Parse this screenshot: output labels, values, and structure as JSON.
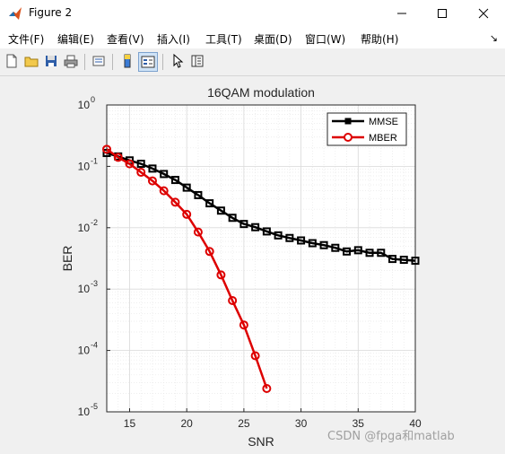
{
  "window": {
    "title": "Figure 2"
  },
  "menu": [
    "文件(F)",
    "编辑(E)",
    "查看(V)",
    "插入(I)",
    "工具(T)",
    "桌面(D)",
    "窗口(W)",
    "帮助(H)"
  ],
  "toolbar": {
    "icons": [
      "new-figure-icon",
      "open-file-icon",
      "save-icon",
      "print-icon",
      "link-axes-icon",
      "colorbar-icon",
      "legend-icon",
      "pointer-icon",
      "property-inspector-icon"
    ]
  },
  "watermark": "CSDN @fpga和matlab",
  "chart_data": {
    "type": "line",
    "title": "16QAM modulation",
    "xlabel": "SNR",
    "ylabel": "BER",
    "xlim": [
      13,
      40
    ],
    "ylim": [
      1e-05,
      1
    ],
    "yscale": "log",
    "grid": true,
    "minor_grid": true,
    "legend_position": "top-right",
    "xticks": [
      15,
      20,
      25,
      30,
      35,
      40
    ],
    "yticks": [
      {
        "value": 1,
        "base": "10",
        "exp": "0"
      },
      {
        "value": 0.1,
        "base": "10",
        "exp": "-1"
      },
      {
        "value": 0.01,
        "base": "10",
        "exp": "-2"
      },
      {
        "value": 0.001,
        "base": "10",
        "exp": "-3"
      },
      {
        "value": 0.0001,
        "base": "10",
        "exp": "-4"
      },
      {
        "value": 1e-05,
        "base": "10",
        "exp": "-5"
      }
    ],
    "series": [
      {
        "name": "MMSE",
        "color": "#000000",
        "marker": "square",
        "x": [
          13,
          14,
          15,
          16,
          17,
          18,
          19,
          20,
          21,
          22,
          23,
          24,
          25,
          26,
          27,
          28,
          29,
          30,
          31,
          32,
          33,
          34,
          35,
          36,
          37,
          38,
          39,
          40
        ],
        "y": [
          0.165,
          0.145,
          0.125,
          0.11,
          0.092,
          0.075,
          0.06,
          0.045,
          0.034,
          0.025,
          0.019,
          0.0145,
          0.0115,
          0.0102,
          0.0087,
          0.0075,
          0.0068,
          0.0062,
          0.0056,
          0.0052,
          0.0047,
          0.0041,
          0.0043,
          0.0039,
          0.0039,
          0.0031,
          0.003,
          0.0029
        ]
      },
      {
        "name": "MBER",
        "color": "#dd0000",
        "marker": "circle",
        "x": [
          13,
          14,
          15,
          16,
          17,
          18,
          19,
          20,
          21,
          22,
          23,
          24,
          25,
          26,
          27
        ],
        "y": [
          0.19,
          0.14,
          0.11,
          0.08,
          0.058,
          0.04,
          0.026,
          0.0165,
          0.0085,
          0.0041,
          0.0017,
          0.00065,
          0.00026,
          8.2e-05,
          2.4e-05
        ]
      }
    ]
  }
}
